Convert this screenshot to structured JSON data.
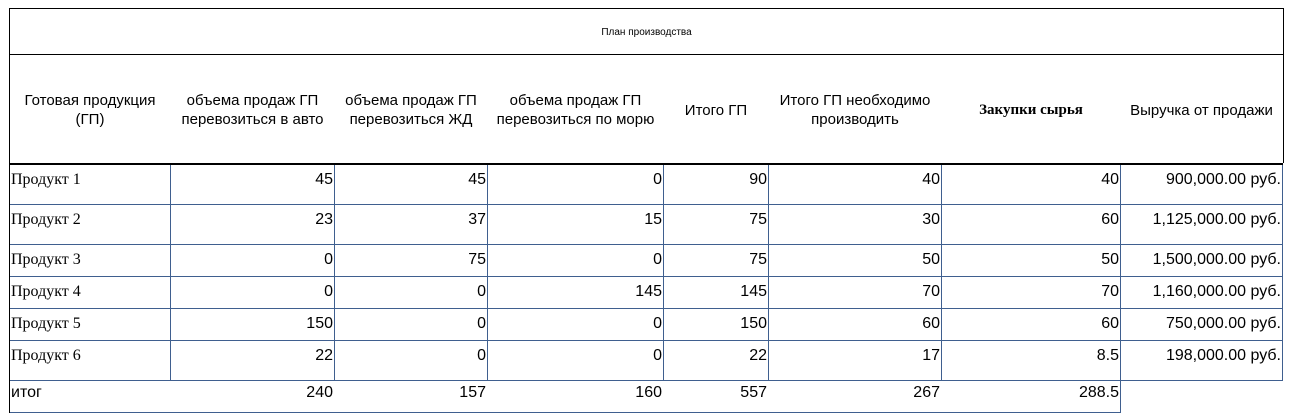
{
  "title": "План производства",
  "headers": [
    "Готовая продукция (ГП)",
    "объема продаж ГП перевозиться в авто",
    "объема продаж ГП перевозиться ЖД",
    "объема продаж ГП перевозиться по морю",
    "Итого ГП",
    "Итого ГП необходимо производить",
    "Закупки сырья",
    "Выручка от продажи"
  ],
  "rows": [
    {
      "name": "Продукт 1",
      "auto": "45",
      "rail": "45",
      "sea": "0",
      "total": "90",
      "produce": "40",
      "purchase": "40",
      "revenue": "900,000.00 руб."
    },
    {
      "name": "Продукт 2",
      "auto": "23",
      "rail": "37",
      "sea": "15",
      "total": "75",
      "produce": "30",
      "purchase": "60",
      "revenue": "1,125,000.00 руб."
    },
    {
      "name": "Продукт 3",
      "auto": "0",
      "rail": "75",
      "sea": "0",
      "total": "75",
      "produce": "50",
      "purchase": "50",
      "revenue": "1,500,000.00 руб."
    },
    {
      "name": "Продукт 4",
      "auto": "0",
      "rail": "0",
      "sea": "145",
      "total": "145",
      "produce": "70",
      "purchase": "70",
      "revenue": "1,160,000.00 руб."
    },
    {
      "name": "Продукт 5",
      "auto": "150",
      "rail": "0",
      "sea": "0",
      "total": "150",
      "produce": "60",
      "purchase": "60",
      "revenue": "750,000.00 руб."
    },
    {
      "name": "Продукт 6",
      "auto": "22",
      "rail": "0",
      "sea": "0",
      "total": "22",
      "produce": "17",
      "purchase": "8.5",
      "revenue": "198,000.00 руб."
    }
  ],
  "totals": {
    "label": "итог",
    "auto": "240",
    "rail": "157",
    "sea": "160",
    "total": "557",
    "produce": "267",
    "purchase": "288.5"
  }
}
